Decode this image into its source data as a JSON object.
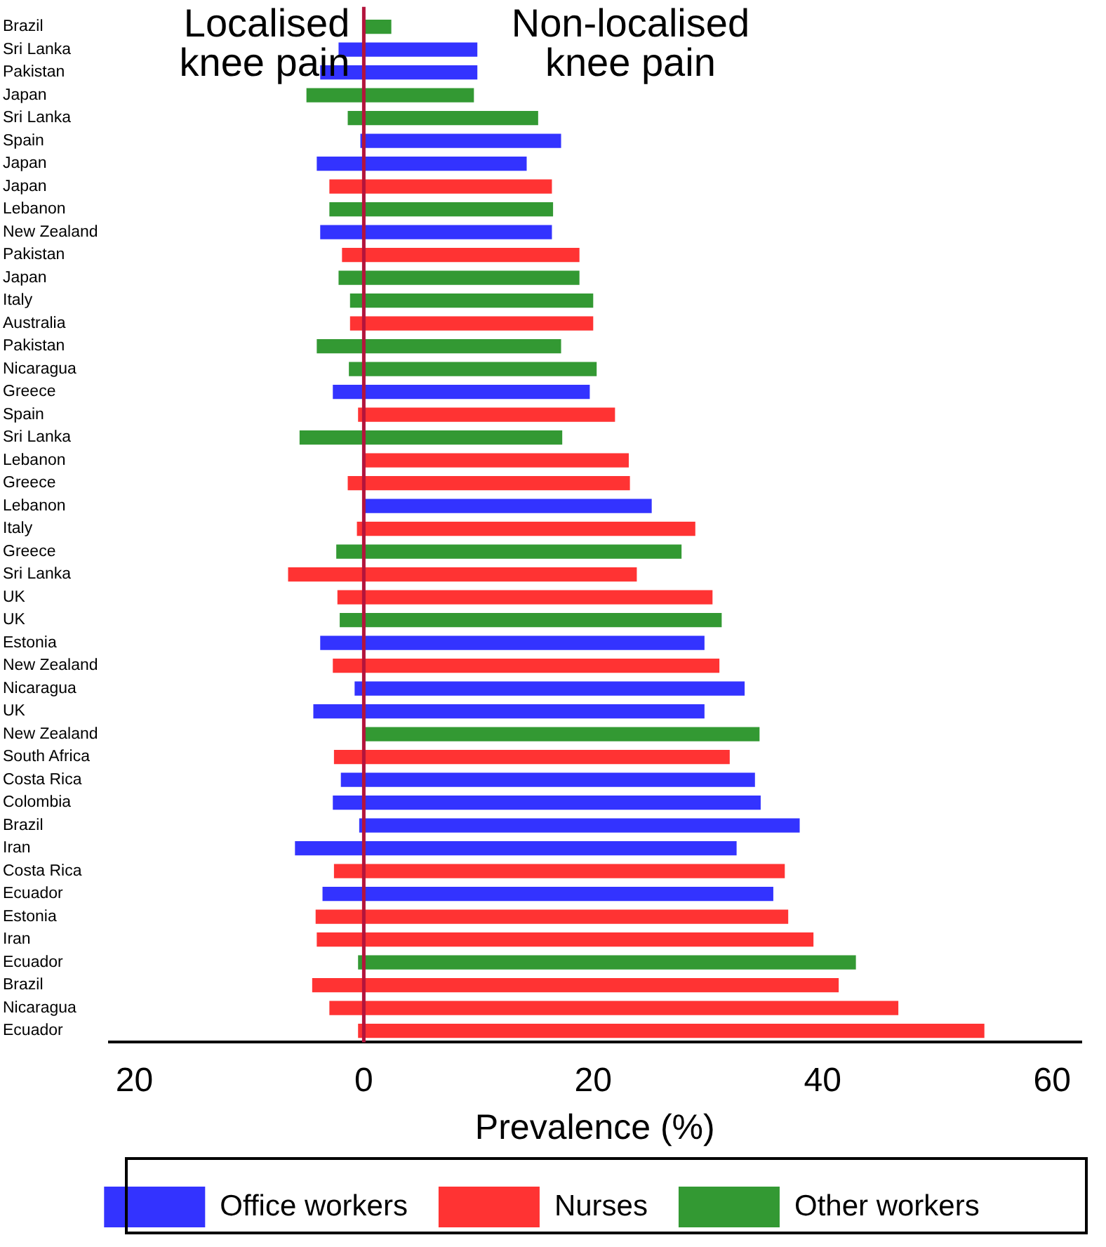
{
  "chart_data": {
    "type": "bar",
    "orientation": "horizontal",
    "xlabel": "Prevalence (%)",
    "categories": [
      "Brazil",
      "Sri Lanka",
      "Pakistan",
      "Japan",
      "Sri Lanka",
      "Spain",
      "Japan",
      "Japan",
      "Lebanon",
      "New Zealand",
      "Pakistan",
      "Japan",
      "Italy",
      "Australia",
      "Pakistan",
      "Nicaragua",
      "Greece",
      "Spain",
      "Sri Lanka",
      "Lebanon",
      "Greece",
      "Lebanon",
      "Italy",
      "Greece",
      "Sri Lanka",
      "UK",
      "UK",
      "Estonia",
      "New Zealand",
      "Nicaragua",
      "UK",
      "New Zealand",
      "South Africa",
      "Costa Rica",
      "Colombia",
      "Brazil",
      "Iran",
      "Costa Rica",
      "Ecuador",
      "Estonia",
      "Iran",
      "Ecuador",
      "Brazil",
      "Nicaragua",
      "Ecuador"
    ],
    "series": [
      {
        "name": "Office workers",
        "color": "#3333ff",
        "values": [
          null,
          12.1,
          13.7,
          null,
          null,
          17.5,
          18.3,
          null,
          null,
          20.2,
          null,
          null,
          null,
          null,
          null,
          null,
          22.4,
          null,
          null,
          null,
          null,
          25.1,
          null,
          null,
          null,
          null,
          null,
          33.5,
          null,
          34.0,
          34.1,
          null,
          null,
          36.1,
          37.3,
          38.4,
          38.5,
          null,
          39.3,
          null,
          null,
          null,
          null,
          null,
          null
        ],
        "base": [
          null,
          -2.2,
          -3.8,
          null,
          null,
          -0.3,
          -4.1,
          null,
          null,
          -3.8,
          null,
          null,
          null,
          null,
          null,
          null,
          -2.7,
          null,
          null,
          null,
          null,
          0,
          null,
          null,
          null,
          null,
          null,
          -3.8,
          null,
          -0.8,
          -4.4,
          null,
          null,
          -2.0,
          -2.7,
          -0.4,
          -6.0,
          null,
          -3.6,
          null,
          null,
          null,
          null,
          null,
          null
        ]
      },
      {
        "name": "Nurses",
        "color": "#ff3333",
        "values": [
          null,
          null,
          null,
          null,
          null,
          null,
          null,
          19.4,
          null,
          null,
          20.7,
          null,
          null,
          21.2,
          null,
          null,
          null,
          22.4,
          null,
          23.1,
          24.6,
          null,
          29.5,
          null,
          30.4,
          32.7,
          null,
          null,
          33.7,
          null,
          null,
          null,
          34.5,
          null,
          null,
          null,
          null,
          39.3,
          null,
          41.2,
          43.3,
          null,
          45.9,
          49.6,
          54.6
        ],
        "base": [
          null,
          null,
          null,
          null,
          null,
          null,
          null,
          -3.0,
          null,
          null,
          -1.9,
          null,
          null,
          -1.2,
          null,
          null,
          null,
          -0.5,
          null,
          0,
          -1.4,
          null,
          -0.6,
          null,
          -6.6,
          -2.3,
          null,
          null,
          -2.7,
          null,
          null,
          null,
          -2.6,
          null,
          null,
          null,
          null,
          -2.6,
          null,
          -4.2,
          -4.1,
          null,
          -4.5,
          -3.0,
          -0.5
        ]
      },
      {
        "name": "Other workers",
        "color": "#339933",
        "values": [
          2.4,
          null,
          null,
          14.6,
          16.6,
          null,
          null,
          null,
          19.5,
          null,
          null,
          21.0,
          21.2,
          null,
          21.3,
          21.6,
          null,
          null,
          22.9,
          null,
          null,
          null,
          null,
          30.1,
          null,
          null,
          33.3,
          null,
          null,
          null,
          null,
          34.5,
          null,
          null,
          null,
          null,
          null,
          null,
          null,
          null,
          null,
          43.4,
          null,
          null,
          null
        ],
        "base": [
          0,
          null,
          null,
          -5.0,
          -1.4,
          null,
          null,
          null,
          -3.0,
          null,
          null,
          -2.2,
          -1.2,
          null,
          -4.1,
          -1.3,
          null,
          null,
          -5.6,
          null,
          null,
          null,
          null,
          -2.4,
          null,
          null,
          -2.1,
          null,
          null,
          null,
          null,
          0,
          null,
          null,
          null,
          null,
          null,
          null,
          null,
          null,
          null,
          -0.5,
          null,
          null,
          null
        ]
      }
    ],
    "xlim": [
      -22.2,
      62.5
    ],
    "xticks": [
      {
        "value": -20,
        "label": "20"
      },
      0,
      20,
      40,
      60
    ],
    "ref_lines": [
      {
        "axis": "x",
        "value": 0,
        "color": "#b3143c"
      }
    ],
    "annotations": [
      "Localised knee pain",
      "Non-localised knee pain"
    ],
    "legend": "bottom",
    "grid": false
  }
}
